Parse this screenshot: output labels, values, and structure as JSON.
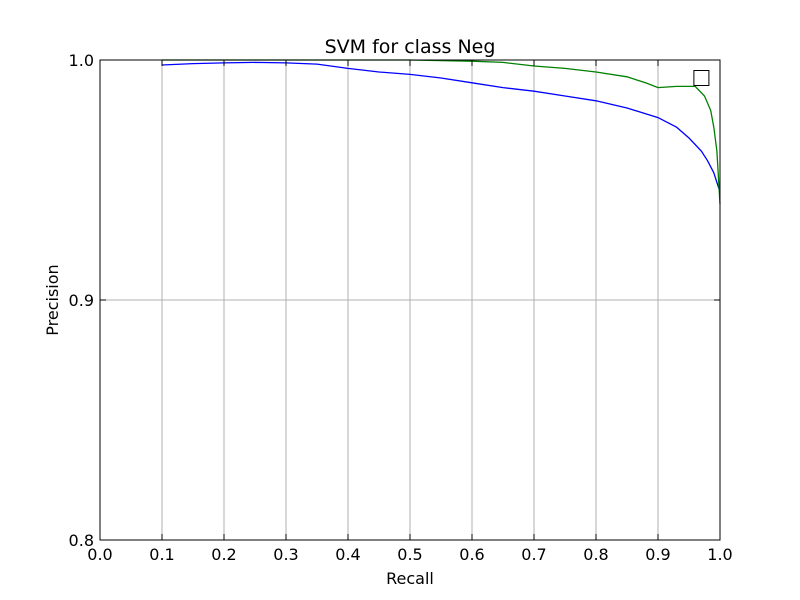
{
  "chart_data": {
    "type": "line",
    "title": "SVM for class Neg",
    "xlabel": "Recall",
    "ylabel": "Precision",
    "xlim": [
      0.0,
      1.0
    ],
    "ylim": [
      0.8,
      1.0
    ],
    "grid": true,
    "x_ticks": [
      0.0,
      0.1,
      0.2,
      0.3,
      0.4,
      0.5,
      0.6,
      0.7,
      0.8,
      0.9,
      1.0
    ],
    "x_tick_labels": [
      "0.0",
      "0.1",
      "0.2",
      "0.3",
      "0.4",
      "0.5",
      "0.6",
      "0.7",
      "0.8",
      "0.9",
      "1.0"
    ],
    "y_ticks": [
      0.8,
      0.9,
      1.0
    ],
    "y_tick_labels": [
      "0.8",
      "0.9",
      "1.0"
    ],
    "series": [
      {
        "color": "#0000ff",
        "points": [
          [
            0.1,
            0.9979
          ],
          [
            0.15,
            0.9985
          ],
          [
            0.2,
            0.9988
          ],
          [
            0.25,
            0.999
          ],
          [
            0.3,
            0.9988
          ],
          [
            0.35,
            0.9983
          ],
          [
            0.4,
            0.9965
          ],
          [
            0.45,
            0.995
          ],
          [
            0.5,
            0.994
          ],
          [
            0.55,
            0.9925
          ],
          [
            0.6,
            0.9905
          ],
          [
            0.65,
            0.9885
          ],
          [
            0.7,
            0.987
          ],
          [
            0.75,
            0.985
          ],
          [
            0.8,
            0.983
          ],
          [
            0.85,
            0.98
          ],
          [
            0.9,
            0.976
          ],
          [
            0.93,
            0.972
          ],
          [
            0.95,
            0.9675
          ],
          [
            0.97,
            0.962
          ],
          [
            0.98,
            0.958
          ],
          [
            0.99,
            0.953
          ],
          [
            1.0,
            0.945
          ]
        ]
      },
      {
        "color": "#008000",
        "points": [
          [
            0.1,
            1.0
          ],
          [
            0.5,
            1.0
          ],
          [
            0.6,
            0.9995
          ],
          [
            0.65,
            0.999
          ],
          [
            0.7,
            0.9975
          ],
          [
            0.75,
            0.9965
          ],
          [
            0.8,
            0.995
          ],
          [
            0.85,
            0.993
          ],
          [
            0.88,
            0.9905
          ],
          [
            0.9,
            0.9885
          ],
          [
            0.93,
            0.989
          ],
          [
            0.96,
            0.989
          ],
          [
            0.975,
            0.985
          ],
          [
            0.985,
            0.979
          ],
          [
            0.99,
            0.972
          ],
          [
            0.995,
            0.962
          ],
          [
            1.0,
            0.94
          ]
        ]
      }
    ],
    "marker": {
      "shape": "square",
      "x": 0.97,
      "y": 0.9925,
      "fill": "#ffffff",
      "stroke": "#000000"
    }
  }
}
